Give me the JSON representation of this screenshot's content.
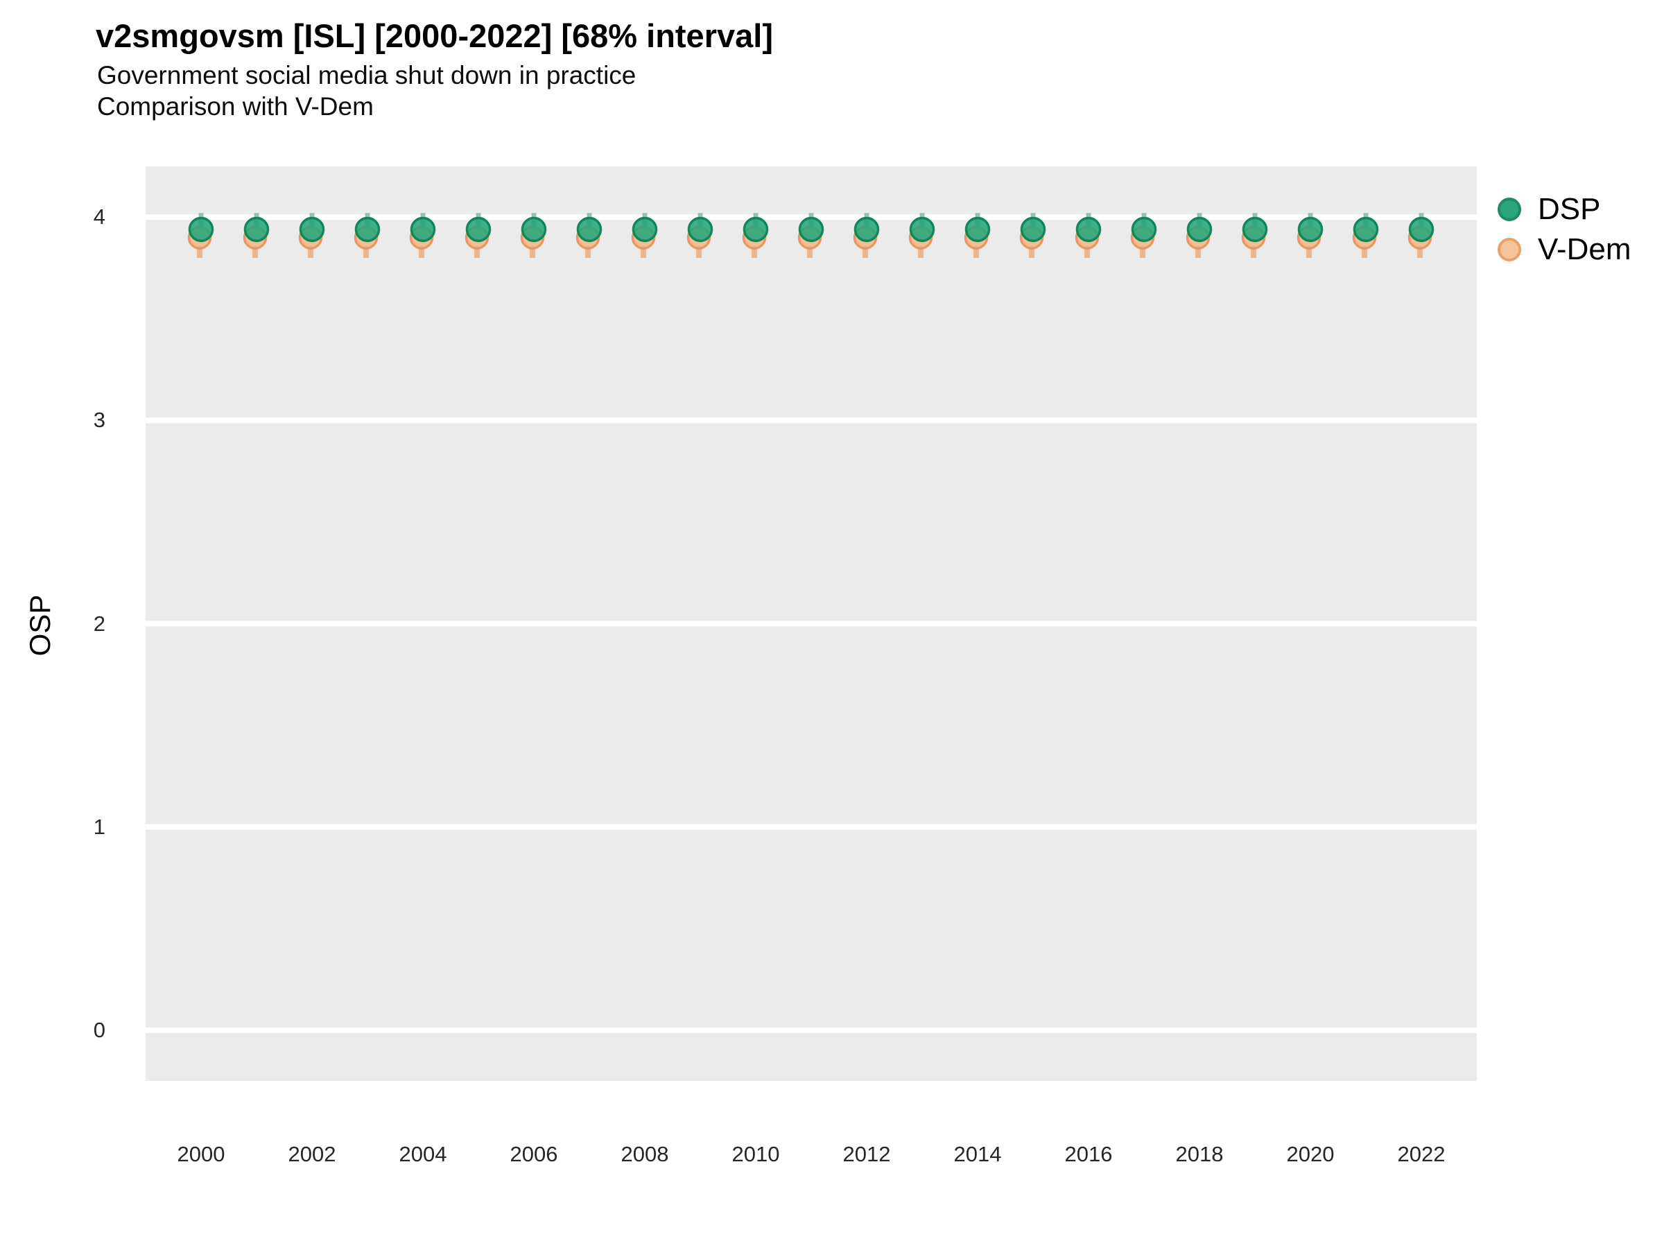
{
  "title": "v2smgovsm [ISL] [2000-2022] [68% interval]",
  "subtitle1": "Government social media shut down in practice",
  "subtitle2": "Comparison with V-Dem",
  "ylabel": "OSP",
  "colors": {
    "panel_background": "#ebebeb",
    "gridline": "#ffffff",
    "dsp_fill": "#21a47a",
    "dsp_stroke": "#108761",
    "dsp_interval": "rgba(31,148,101,0.5)",
    "vdem_fill": "#f4bd92",
    "vdem_stroke": "#e69a5e",
    "vdem_interval": "rgba(230,153,97,0.62)"
  },
  "legend": [
    {
      "label": "DSP",
      "fill": "#2aa57c",
      "stroke": "#1e8a66"
    },
    {
      "label": "V-Dem",
      "fill": "#f5c49d",
      "stroke": "#e8a268"
    }
  ],
  "chart_data": {
    "type": "scatter",
    "title": "v2smgovsm [ISL] [2000-2022] [68% interval]",
    "subtitle": "Government social media shut down in practice — Comparison with V-Dem",
    "xlabel": "",
    "ylabel": "OSP",
    "xlim": [
      1999,
      2023
    ],
    "ylim": [
      -0.25,
      4.25
    ],
    "xticks": [
      2000,
      2002,
      2004,
      2006,
      2008,
      2010,
      2012,
      2014,
      2016,
      2018,
      2020,
      2022
    ],
    "yticks": [
      0,
      1,
      2,
      3,
      4
    ],
    "grid": "horizontal-major-only",
    "legend_position": "right",
    "x": [
      2000,
      2001,
      2002,
      2003,
      2004,
      2005,
      2006,
      2007,
      2008,
      2009,
      2010,
      2011,
      2012,
      2013,
      2014,
      2015,
      2016,
      2017,
      2018,
      2019,
      2020,
      2021,
      2022
    ],
    "series": [
      {
        "name": "DSP",
        "color": "#21a47a",
        "stroke": "#108761",
        "bar_color": "rgba(31,148,101,0.5)",
        "values": [
          3.94,
          3.94,
          3.94,
          3.94,
          3.94,
          3.94,
          3.94,
          3.94,
          3.94,
          3.94,
          3.94,
          3.94,
          3.94,
          3.94,
          3.94,
          3.94,
          3.94,
          3.94,
          3.94,
          3.94,
          3.94,
          3.94,
          3.94
        ],
        "lower": [
          3.87,
          3.87,
          3.87,
          3.87,
          3.87,
          3.87,
          3.87,
          3.87,
          3.87,
          3.87,
          3.87,
          3.87,
          3.87,
          3.87,
          3.87,
          3.87,
          3.87,
          3.87,
          3.87,
          3.87,
          3.87,
          3.87,
          3.87
        ],
        "upper": [
          4.02,
          4.02,
          4.02,
          4.02,
          4.02,
          4.02,
          4.02,
          4.02,
          4.02,
          4.02,
          4.02,
          4.02,
          4.02,
          4.02,
          4.02,
          4.02,
          4.02,
          4.02,
          4.02,
          4.02,
          4.02,
          4.02,
          4.02
        ]
      },
      {
        "name": "V-Dem",
        "color": "#f4bd92",
        "stroke": "#e69a5e",
        "bar_color": "rgba(230,153,97,0.62)",
        "values": [
          3.9,
          3.9,
          3.9,
          3.9,
          3.9,
          3.9,
          3.9,
          3.9,
          3.9,
          3.9,
          3.9,
          3.9,
          3.9,
          3.9,
          3.9,
          3.9,
          3.9,
          3.9,
          3.9,
          3.9,
          3.9,
          3.9,
          3.9
        ],
        "lower": [
          3.8,
          3.8,
          3.8,
          3.8,
          3.8,
          3.8,
          3.8,
          3.8,
          3.8,
          3.8,
          3.8,
          3.8,
          3.8,
          3.8,
          3.8,
          3.8,
          3.8,
          3.8,
          3.8,
          3.8,
          3.8,
          3.8,
          3.8
        ],
        "upper": [
          3.93,
          3.93,
          3.93,
          3.93,
          3.93,
          3.93,
          3.93,
          3.93,
          3.93,
          3.93,
          3.93,
          3.93,
          3.93,
          3.93,
          3.93,
          3.93,
          3.93,
          3.93,
          3.93,
          3.93,
          3.93,
          3.93,
          3.93
        ]
      }
    ]
  }
}
